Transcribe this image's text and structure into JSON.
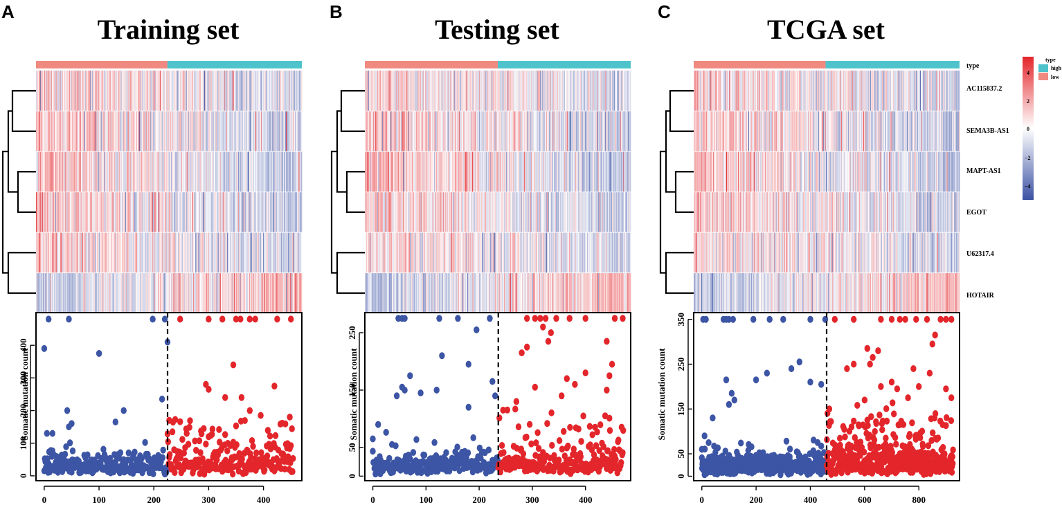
{
  "colors": {
    "low": "#f08a80",
    "high": "#4ec3cc",
    "heat_high": "#e3262b",
    "heat_mid": "#ffffff",
    "heat_low": "#3b51a3",
    "point_low": "#3c55a4",
    "point_high": "#e3262b"
  },
  "genes": [
    "AC115837.2",
    "SEMA3B-AS1",
    "MAPT-AS1",
    "EGOT",
    "U62317.4",
    "HOTAIR"
  ],
  "type_row_label": "type",
  "legend": {
    "title": "type",
    "items": [
      {
        "label": "high",
        "color": "#4ec3cc"
      },
      {
        "label": "low",
        "color": "#f08a80"
      }
    ],
    "scale_ticks": [
      "4",
      "2",
      "0",
      "−2",
      "−4"
    ]
  },
  "chart_data": [
    {
      "panel": "A",
      "title": "Training set",
      "type": "scatter",
      "ylabel": "Somatic mutation count",
      "xlim": [
        -15,
        470
      ],
      "ylim": [
        -15,
        500
      ],
      "xticks": [
        0,
        100,
        200,
        300,
        400
      ],
      "yticks": [
        0,
        100,
        200,
        300,
        400
      ],
      "n_samples": 455,
      "cutoff": 225,
      "clip_value": 480,
      "heatmap_cols": 455,
      "low_risk_outliers": [
        [
          8,
          480
        ],
        [
          45,
          480
        ],
        [
          198,
          480
        ],
        [
          220,
          480
        ],
        [
          0,
          390
        ],
        [
          100,
          375
        ],
        [
          225,
          410
        ],
        [
          42,
          200
        ],
        [
          145,
          200
        ],
        [
          50,
          160
        ],
        [
          45,
          150
        ],
        [
          5,
          130
        ],
        [
          15,
          130
        ],
        [
          130,
          165
        ],
        [
          215,
          235
        ]
      ],
      "high_risk_outliers": [
        [
          248,
          480
        ],
        [
          300,
          480
        ],
        [
          325,
          480
        ],
        [
          350,
          480
        ],
        [
          358,
          480
        ],
        [
          375,
          480
        ],
        [
          385,
          480
        ],
        [
          425,
          480
        ],
        [
          450,
          480
        ],
        [
          345,
          340
        ],
        [
          295,
          280
        ],
        [
          300,
          265
        ],
        [
          420,
          275
        ],
        [
          330,
          240
        ],
        [
          360,
          240
        ],
        [
          375,
          200
        ],
        [
          395,
          185
        ],
        [
          228,
          170
        ],
        [
          448,
          180
        ]
      ]
    },
    {
      "panel": "B",
      "title": "Testing set",
      "type": "scatter",
      "ylabel": "Somatic mutation count",
      "xlim": [
        -15,
        485
      ],
      "ylim": [
        -8,
        285
      ],
      "xticks": [
        0,
        100,
        200,
        300,
        400
      ],
      "yticks": [
        0,
        50,
        150,
        250
      ],
      "n_samples": 472,
      "cutoff": 236,
      "clip_value": 275,
      "heatmap_cols": 472,
      "low_risk_outliers": [
        [
          48,
          275
        ],
        [
          55,
          275
        ],
        [
          60,
          275
        ],
        [
          125,
          275
        ],
        [
          160,
          275
        ],
        [
          220,
          275
        ],
        [
          195,
          255
        ],
        [
          180,
          195
        ],
        [
          225,
          165
        ],
        [
          70,
          175
        ],
        [
          55,
          155
        ],
        [
          60,
          150
        ],
        [
          45,
          140
        ],
        [
          130,
          210
        ],
        [
          120,
          150
        ],
        [
          90,
          145
        ],
        [
          230,
          140
        ],
        [
          180,
          120
        ],
        [
          10,
          90
        ],
        [
          0,
          65
        ]
      ],
      "high_risk_outliers": [
        [
          290,
          275
        ],
        [
          305,
          275
        ],
        [
          315,
          275
        ],
        [
          325,
          275
        ],
        [
          345,
          275
        ],
        [
          370,
          275
        ],
        [
          400,
          275
        ],
        [
          455,
          275
        ],
        [
          470,
          275
        ],
        [
          320,
          260
        ],
        [
          335,
          250
        ],
        [
          330,
          235
        ],
        [
          280,
          215
        ],
        [
          290,
          225
        ],
        [
          440,
          235
        ],
        [
          450,
          195
        ],
        [
          445,
          175
        ],
        [
          400,
          180
        ],
        [
          365,
          170
        ],
        [
          305,
          155
        ],
        [
          355,
          140
        ],
        [
          380,
          160
        ],
        [
          440,
          150
        ],
        [
          270,
          130
        ],
        [
          245,
          115
        ]
      ]
    },
    {
      "panel": "C",
      "title": "TCGA set",
      "type": "scatter",
      "ylabel": "Somatic mutation count",
      "xlim": [
        -30,
        950
      ],
      "ylim": [
        -10,
        365
      ],
      "xticks": [
        0,
        200,
        400,
        600,
        800
      ],
      "yticks": [
        0,
        50,
        150,
        250,
        350
      ],
      "n_samples": 927,
      "cutoff": 460,
      "clip_value": 350,
      "heatmap_cols": 480,
      "low_risk_outliers": [
        [
          5,
          350
        ],
        [
          15,
          350
        ],
        [
          80,
          350
        ],
        [
          90,
          350
        ],
        [
          100,
          350
        ],
        [
          115,
          350
        ],
        [
          190,
          350
        ],
        [
          250,
          350
        ],
        [
          300,
          350
        ],
        [
          400,
          350
        ],
        [
          455,
          350
        ],
        [
          330,
          240
        ],
        [
          360,
          255
        ],
        [
          200,
          215
        ],
        [
          240,
          230
        ],
        [
          400,
          210
        ],
        [
          440,
          205
        ],
        [
          90,
          215
        ],
        [
          110,
          185
        ],
        [
          120,
          170
        ],
        [
          100,
          160
        ],
        [
          40,
          130
        ],
        [
          10,
          90
        ],
        [
          0,
          60
        ]
      ],
      "high_risk_outliers": [
        [
          490,
          350
        ],
        [
          560,
          350
        ],
        [
          660,
          350
        ],
        [
          700,
          350
        ],
        [
          730,
          350
        ],
        [
          750,
          350
        ],
        [
          790,
          350
        ],
        [
          830,
          350
        ],
        [
          880,
          350
        ],
        [
          900,
          350
        ],
        [
          920,
          350
        ],
        [
          860,
          315
        ],
        [
          850,
          295
        ],
        [
          610,
          285
        ],
        [
          650,
          280
        ],
        [
          630,
          265
        ],
        [
          620,
          250
        ],
        [
          535,
          240
        ],
        [
          560,
          250
        ],
        [
          780,
          240
        ],
        [
          840,
          230
        ],
        [
          700,
          210
        ],
        [
          660,
          200
        ],
        [
          720,
          195
        ],
        [
          800,
          200
        ],
        [
          900,
          195
        ],
        [
          470,
          150
        ],
        [
          760,
          175
        ],
        [
          920,
          175
        ],
        [
          600,
          170
        ]
      ]
    }
  ]
}
